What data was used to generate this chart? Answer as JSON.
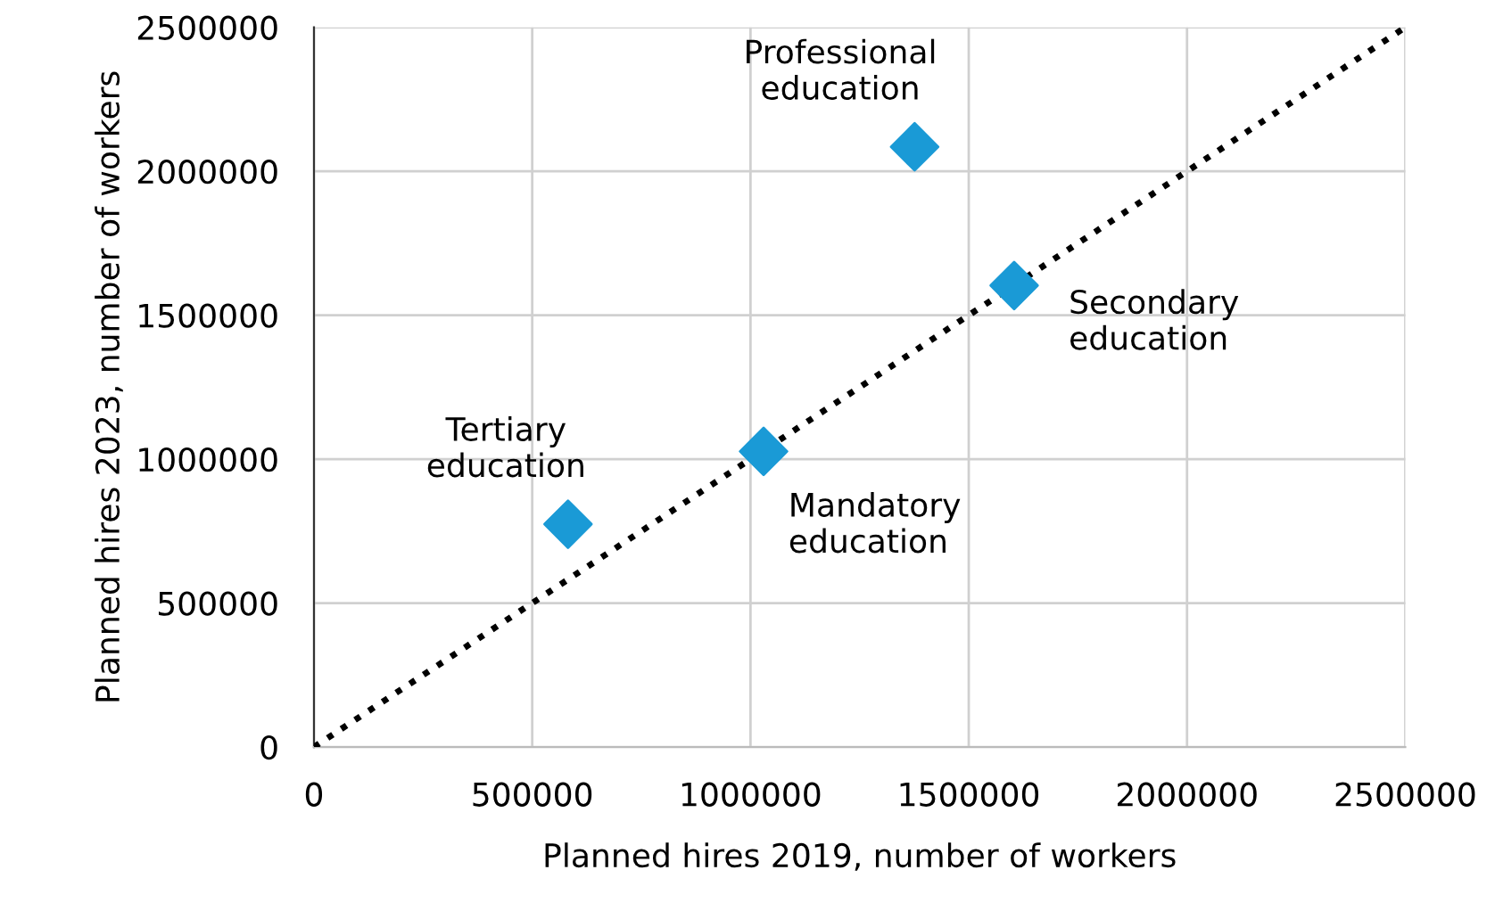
{
  "chart_data": {
    "type": "scatter",
    "xlabel": "Planned hires 2019, number of workers",
    "ylabel": "Planned hires 2023, number of workers",
    "xlim": [
      0,
      2500000
    ],
    "ylim": [
      0,
      2500000
    ],
    "xticks": [
      0,
      500000,
      1000000,
      1500000,
      2000000,
      2500000
    ],
    "yticks": [
      0,
      500000,
      1000000,
      1500000,
      2000000,
      2500000
    ],
    "grid": true,
    "series": [
      {
        "type": "line",
        "color": "#000000",
        "x": [
          0,
          2500000
        ],
        "values": [
          0,
          2500000
        ],
        "line_style": "dotted",
        "marker": "none"
      },
      {
        "color": "#1a9ad6",
        "x": [
          582000,
          1030000,
          1376000,
          1604000
        ],
        "values": [
          774000,
          1027000,
          2085000,
          1603000
        ],
        "marker": "diamond"
      }
    ],
    "annotations": [
      {
        "text": "Tertiary\neducation",
        "x": 582000,
        "y": 774000
      },
      {
        "text": "Mandatory\neducation",
        "x": 1030000,
        "y": 1027000
      },
      {
        "text": "Professional\neducation",
        "x": 1376000,
        "y": 2085000
      },
      {
        "text": "Secondary\neducation",
        "x": 1604000,
        "y": 1603000
      }
    ]
  }
}
